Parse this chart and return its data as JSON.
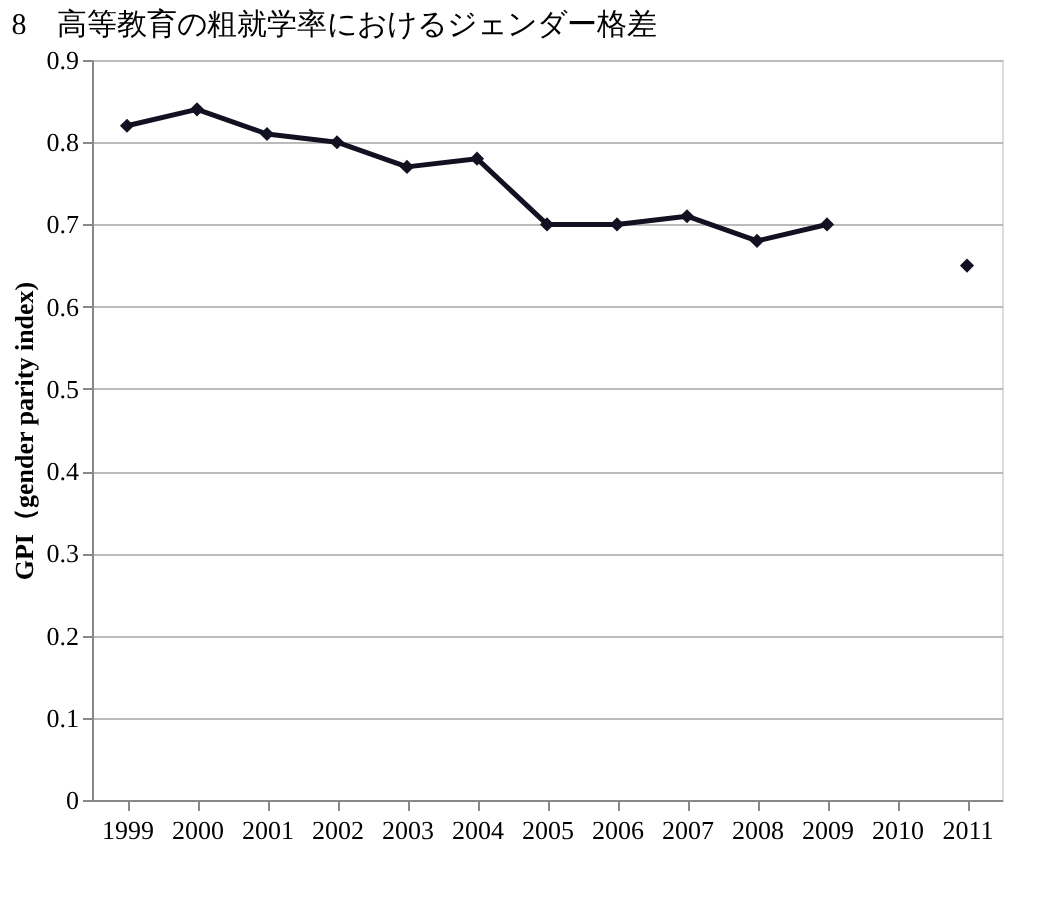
{
  "chart_data": {
    "type": "line",
    "title": "8　高等教育の粗就学率におけるジェンダー格差",
    "ylabel": "GPI（gender parity index)",
    "categories": [
      "1999",
      "2000",
      "2001",
      "2002",
      "2003",
      "2004",
      "2005",
      "2006",
      "2007",
      "2008",
      "2009",
      "2010",
      "2011"
    ],
    "series": [
      {
        "color": "#111122",
        "values": [
          0.82,
          0.84,
          0.81,
          0.8,
          0.77,
          0.78,
          0.7,
          0.7,
          0.71,
          0.68,
          0.7,
          null,
          0.65
        ]
      }
    ],
    "ylim": [
      0,
      0.9
    ],
    "yticks": [
      0,
      0.1,
      0.2,
      0.3,
      0.4,
      0.5,
      0.6,
      0.7,
      0.8,
      0.9
    ],
    "grid": "y",
    "marker": "diamond",
    "line_style": "solid"
  }
}
